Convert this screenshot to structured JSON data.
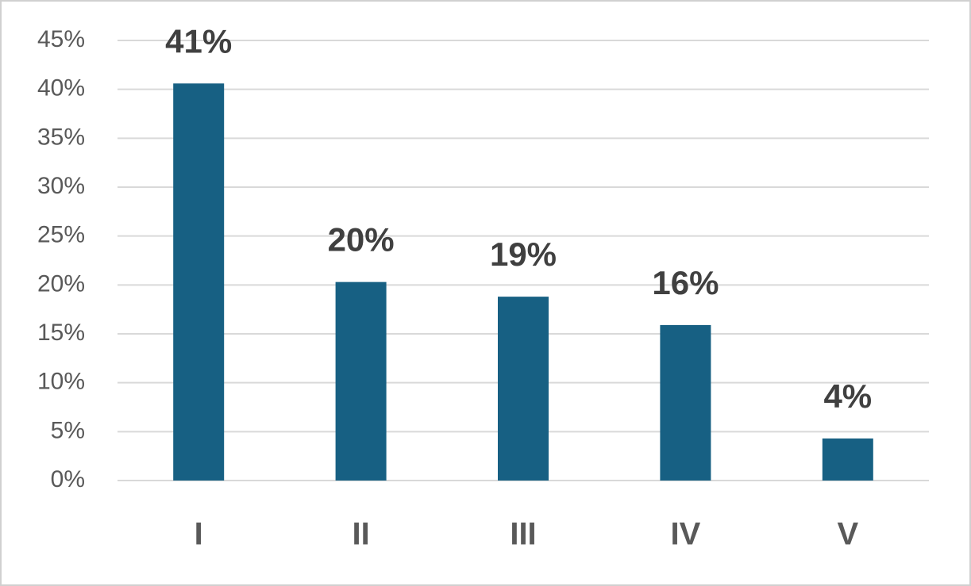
{
  "chart_data": {
    "type": "bar",
    "categories": [
      "I",
      "II",
      "III",
      "IV",
      "V"
    ],
    "values": [
      40.6,
      20.3,
      18.8,
      15.9,
      4.3
    ],
    "value_labels": [
      "41%",
      "20%",
      "19%",
      "16%",
      "4%"
    ],
    "color": "#176083",
    "ylim": [
      0,
      45
    ],
    "yticks": [
      {
        "value": 0,
        "label": "0%"
      },
      {
        "value": 5,
        "label": "5%"
      },
      {
        "value": 10,
        "label": "10%"
      },
      {
        "value": 15,
        "label": "15%"
      },
      {
        "value": 20,
        "label": "20%"
      },
      {
        "value": 25,
        "label": "25%"
      },
      {
        "value": 30,
        "label": "30%"
      },
      {
        "value": 35,
        "label": "35%"
      },
      {
        "value": 40,
        "label": "40%"
      },
      {
        "value": 45,
        "label": "45%"
      }
    ],
    "grid": true
  }
}
